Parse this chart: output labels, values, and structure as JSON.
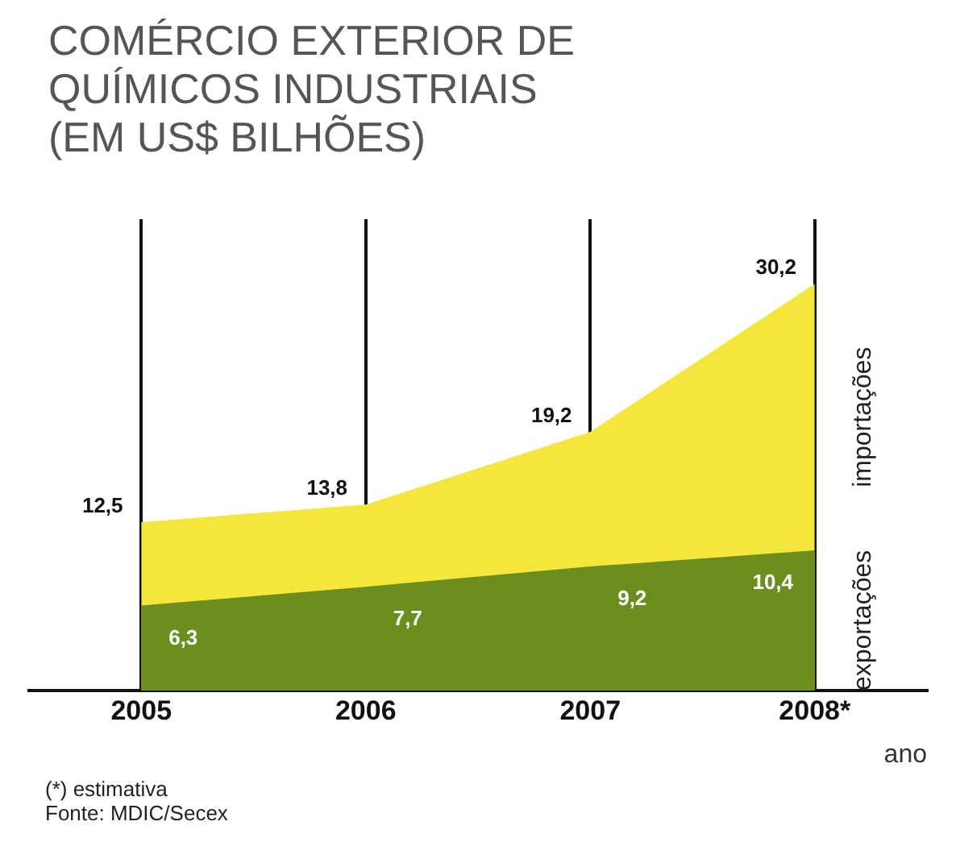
{
  "chart_data": {
    "type": "area",
    "title": "COMÉRCIO EXTERIOR DE QUÍMICOS INDUSTRIAIS (EM US$ BILHÕES)",
    "xlabel": "ano",
    "categories": [
      "2005",
      "2006",
      "2007",
      "2008*"
    ],
    "series": [
      {
        "name": "exportações",
        "color": "#6b8e1e",
        "values": [
          6.3,
          7.7,
          9.2,
          10.4
        ],
        "value_labels": [
          "6,3",
          "7,7",
          "9,2",
          "10,4"
        ]
      },
      {
        "name": "importações",
        "color": "#f5e63c",
        "values": [
          12.5,
          13.8,
          19.2,
          30.2
        ],
        "value_labels": [
          "12,5",
          "13,8",
          "19,2",
          "30,2"
        ]
      }
    ],
    "grid": "x",
    "legend": false,
    "annotations": [
      "(*) estimativa",
      "Fonte: MDIC/Secex"
    ]
  }
}
